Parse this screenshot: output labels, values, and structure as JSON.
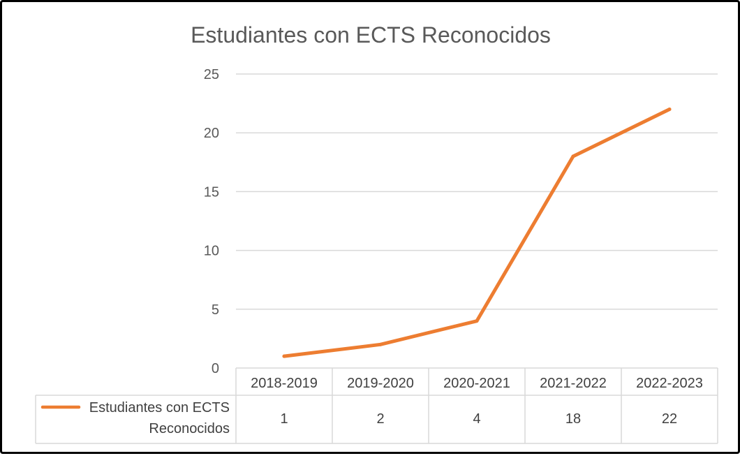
{
  "chart_data": {
    "type": "line",
    "title": "Estudiantes con ECTS Reconocidos",
    "categories": [
      "2018-2019",
      "2019-2020",
      "2020-2021",
      "2021-2022",
      "2022-2023"
    ],
    "series": [
      {
        "name": "Estudiantes con ECTS Reconocidos",
        "name_lines": [
          "Estudiantes con ECTS",
          "Reconocidos"
        ],
        "values": [
          1,
          2,
          4,
          18,
          22
        ],
        "value_labels": [
          "1",
          "2",
          "4",
          "18",
          "22"
        ],
        "color": "#ED7D31"
      }
    ],
    "yticks": [
      "0",
      "5",
      "10",
      "15",
      "20",
      "25"
    ],
    "ylim": [
      0,
      25
    ],
    "grid": true,
    "legend": "data table below chart",
    "xlabel": "",
    "ylabel": ""
  },
  "colors": {
    "gridline": "#D9D9D9",
    "text": "#595959",
    "series": "#ED7D31"
  }
}
